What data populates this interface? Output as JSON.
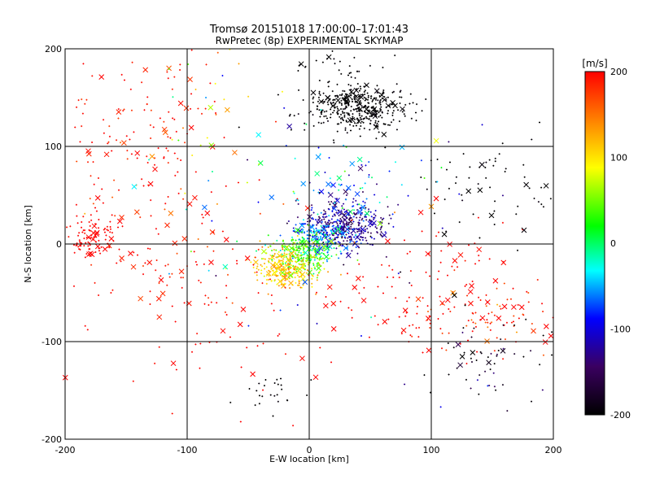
{
  "chart_data": {
    "type": "scatter",
    "title": "Tromsø 20151018 17:00:00–17:01:43",
    "subtitle": "RwPretec (8p) EXPERIMENTAL SKYMAP",
    "xlabel": "E-W location [km]",
    "ylabel": "N-S location [km]",
    "xlim": [
      -200,
      200
    ],
    "ylim": [
      -200,
      200
    ],
    "xticks": [
      "-200",
      "-100",
      "0",
      "100",
      "200"
    ],
    "yticks": [
      "-200",
      "-100",
      "0",
      "100",
      "200"
    ],
    "grid": true,
    "colorbar": {
      "label": "[m/s]",
      "range": [
        -200,
        200
      ],
      "ticks": [
        "200",
        "100",
        "0",
        "-100",
        "-200"
      ],
      "colormap": [
        "#000000",
        "#3a0060",
        "#0000ff",
        "#00ffff",
        "#00ff00",
        "#ffff00",
        "#ff8000",
        "#ff0000"
      ]
    },
    "markers": {
      "dot": "+",
      "cross": "x"
    },
    "clusters": [
      {
        "cx": 40,
        "cy": 140,
        "sx": 20,
        "sy": 12,
        "n": 420,
        "v": -200,
        "vs": 5,
        "crossFrac": 0.08
      },
      {
        "cx": 30,
        "cy": 20,
        "sx": 18,
        "sy": 12,
        "n": 380,
        "v": -130,
        "vs": 25,
        "crossFrac": 0.05
      },
      {
        "cx": 10,
        "cy": 10,
        "sx": 12,
        "sy": 10,
        "n": 200,
        "v": -60,
        "vs": 25,
        "crossFrac": 0.05
      },
      {
        "cx": -5,
        "cy": -10,
        "sx": 12,
        "sy": 10,
        "n": 260,
        "v": 30,
        "vs": 30,
        "crossFrac": 0.05
      },
      {
        "cx": -20,
        "cy": -25,
        "sx": 12,
        "sy": 10,
        "n": 260,
        "v": 110,
        "vs": 20,
        "crossFrac": 0.06
      },
      {
        "cx": 30,
        "cy": 60,
        "sx": 18,
        "sy": 20,
        "n": 60,
        "v": -70,
        "vs": 40,
        "crossFrac": 0.3
      },
      {
        "cx": -180,
        "cy": 5,
        "sx": 14,
        "sy": 12,
        "n": 110,
        "v": 200,
        "vs": 3,
        "crossFrac": 0.08
      },
      {
        "cx": -140,
        "cy": 120,
        "sx": 35,
        "sy": 40,
        "n": 110,
        "v": 195,
        "vs": 15,
        "crossFrac": 0.12
      },
      {
        "cx": -120,
        "cy": 40,
        "sx": 40,
        "sy": 40,
        "n": 70,
        "v": 190,
        "vs": 20,
        "crossFrac": 0.2
      },
      {
        "cx": -100,
        "cy": -30,
        "sx": 40,
        "sy": 25,
        "n": 60,
        "v": 195,
        "vs": 15,
        "crossFrac": 0.3
      },
      {
        "cx": 150,
        "cy": -75,
        "sx": 35,
        "sy": 20,
        "n": 110,
        "v": 190,
        "vs": 25,
        "crossFrac": 0.2
      },
      {
        "cx": 120,
        "cy": -20,
        "sx": 30,
        "sy": 30,
        "n": 50,
        "v": 200,
        "vs": 5,
        "crossFrac": 0.2
      },
      {
        "cx": 150,
        "cy": 60,
        "sx": 30,
        "sy": 30,
        "n": 60,
        "v": -200,
        "vs": 5,
        "crossFrac": 0.15
      },
      {
        "cx": 140,
        "cy": -120,
        "sx": 30,
        "sy": 25,
        "n": 60,
        "v": -180,
        "vs": 40,
        "crossFrac": 0.15
      },
      {
        "cx": 60,
        "cy": -60,
        "sx": 30,
        "sy": 20,
        "n": 50,
        "v": 200,
        "vs": 5,
        "crossFrac": 0.3
      },
      {
        "cx": -30,
        "cy": -150,
        "sx": 10,
        "sy": 12,
        "n": 25,
        "v": -200,
        "vs": 5,
        "crossFrac": 0.05
      },
      {
        "cx": -80,
        "cy": -80,
        "sx": 60,
        "sy": 45,
        "n": 60,
        "v": 200,
        "vs": 5,
        "crossFrac": 0.15
      },
      {
        "cx": 30,
        "cy": 180,
        "sx": 40,
        "sy": 8,
        "n": 30,
        "v": -200,
        "vs": 5,
        "crossFrac": 0.1
      },
      {
        "cx": -80,
        "cy": 150,
        "sx": 30,
        "sy": 30,
        "n": 25,
        "v": 100,
        "vs": 60,
        "crossFrac": 0.15
      },
      {
        "cx": 0,
        "cy": 40,
        "sx": 70,
        "sy": 60,
        "n": 90,
        "v": -40,
        "vs": 90,
        "crossFrac": 0.2
      }
    ]
  }
}
